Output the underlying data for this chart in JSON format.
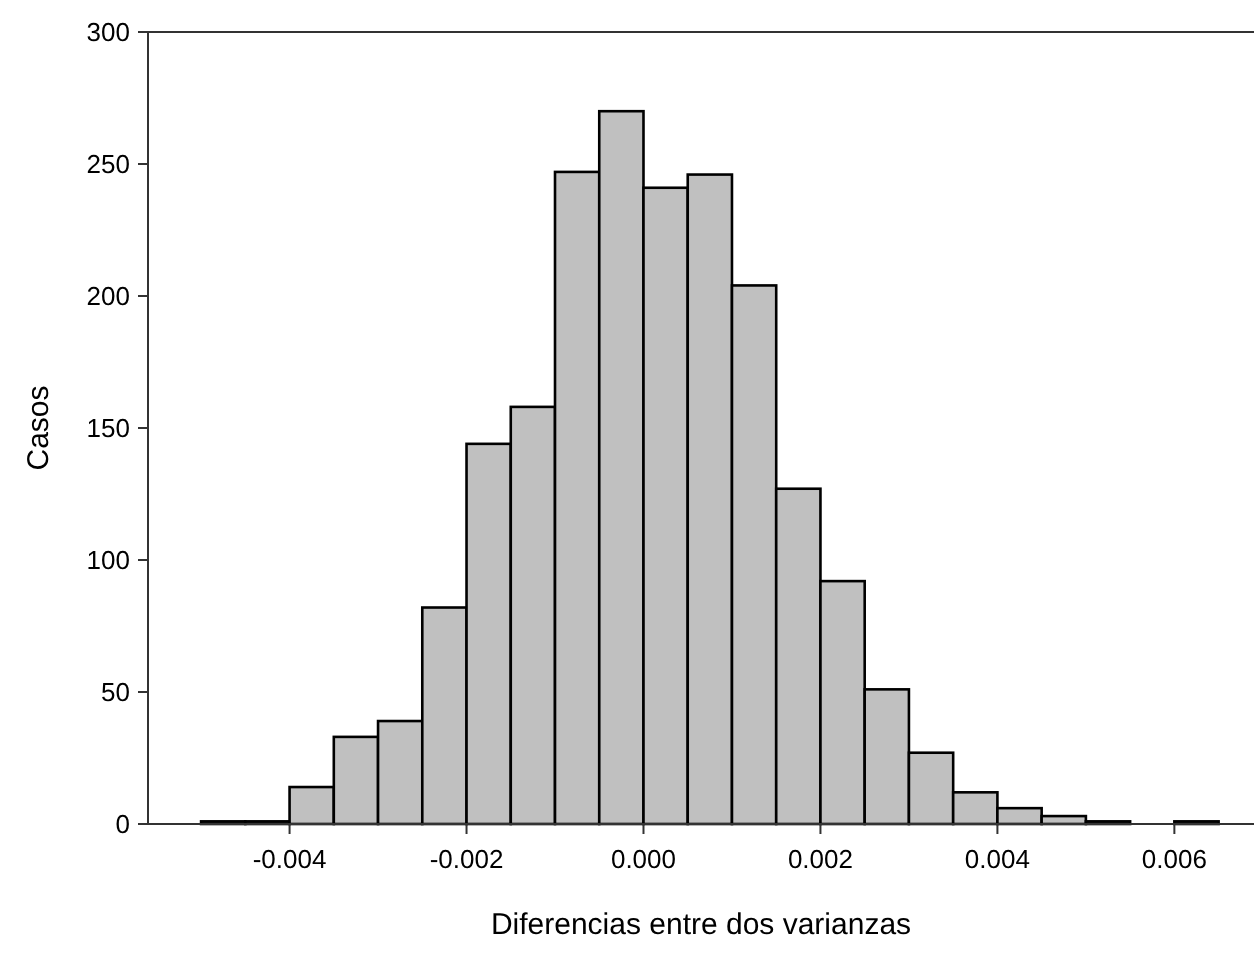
{
  "chart_data": {
    "type": "histogram",
    "xlabel": "Diferencias entre dos varianzas",
    "ylabel": "Casos",
    "bins": [
      -0.005,
      -0.0045,
      -0.004,
      -0.0035,
      -0.003,
      -0.0025,
      -0.002,
      -0.0015,
      -0.001,
      -0.0005,
      0,
      0.0005,
      0.001,
      0.0015,
      0.002,
      0.0025,
      0.003,
      0.0035,
      0.004,
      0.0045,
      0.005,
      0.0055,
      0.006,
      0.0065
    ],
    "values": [
      1,
      1,
      14,
      33,
      39,
      82,
      144,
      158,
      247,
      270,
      241,
      246,
      204,
      127,
      92,
      51,
      27,
      12,
      6,
      3,
      1,
      0,
      1
    ],
    "color": "#c0c0c0",
    "xlim": [
      -0.0056,
      0.0069
    ],
    "xticks": [
      {
        "value": -0.004,
        "label": "-0.004"
      },
      {
        "value": -0.002,
        "label": "-0.002"
      },
      {
        "value": 0,
        "label": "0.000"
      },
      {
        "value": 0.002,
        "label": "0.002"
      },
      {
        "value": 0.004,
        "label": "0.004"
      },
      {
        "value": 0.006,
        "label": "0.006"
      }
    ],
    "ylim": [
      0,
      300
    ],
    "yticks": [
      0,
      50,
      100,
      150,
      200,
      250,
      300
    ],
    "grid": false
  }
}
